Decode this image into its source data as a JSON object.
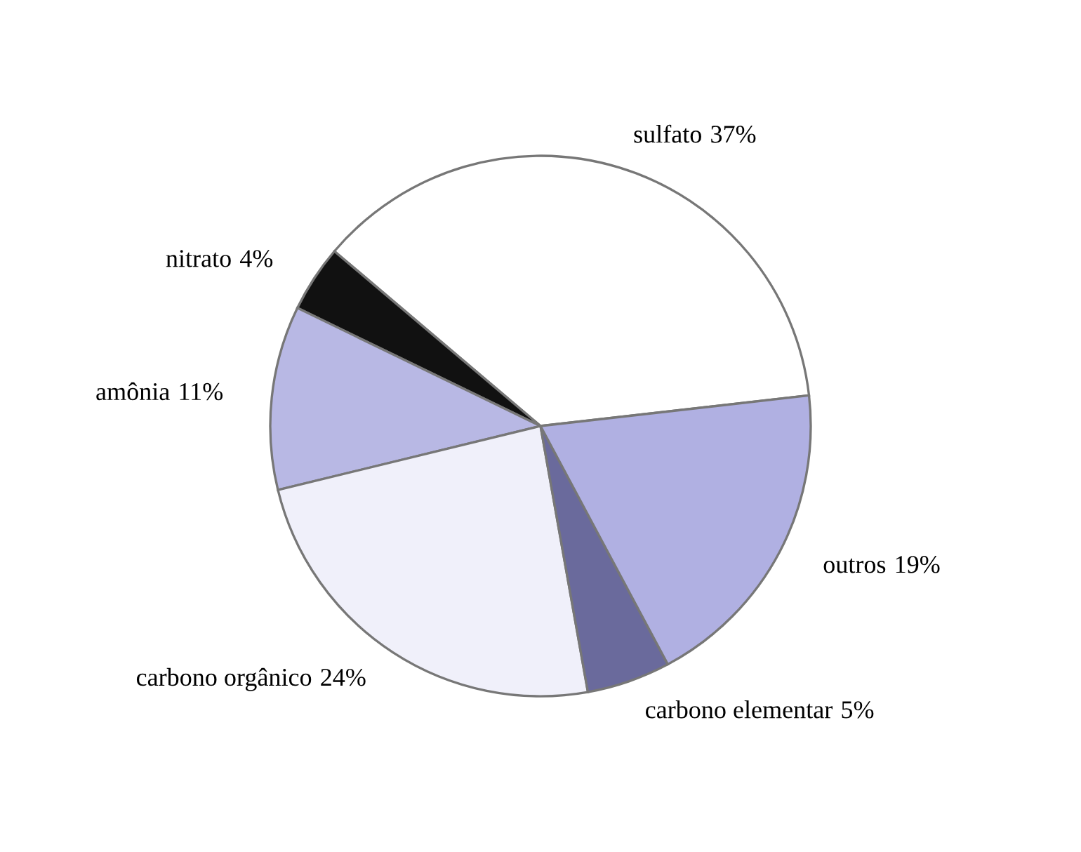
{
  "chart_data": {
    "type": "pie",
    "categories": [
      "sulfato",
      "nitrato",
      "amônia",
      "carbono orgânico",
      "carbono elementar",
      "outros"
    ],
    "values": [
      37,
      4,
      11,
      24,
      5,
      19
    ],
    "value_labels": [
      "37%",
      "4%",
      "11%",
      "24%",
      "5%",
      "19%"
    ],
    "colors": [
      "#ffffff",
      "#111111",
      "#b8b8e4",
      "#f0f0fa",
      "#6a6a9c",
      "#b0b0e2"
    ]
  }
}
